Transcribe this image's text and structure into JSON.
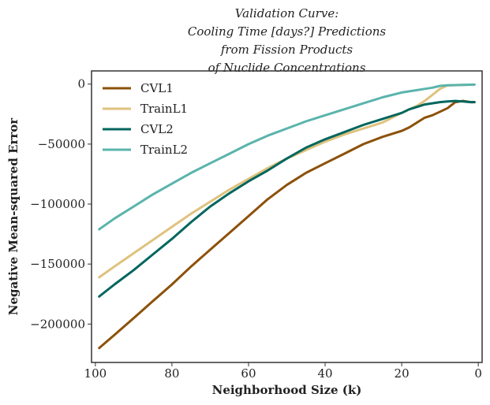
{
  "chart_data": {
    "type": "line",
    "title_lines": [
      "Validation Curve:",
      "Cooling Time [days?] Predictions",
      "from Fission Products",
      "of Nuclide Concentrations"
    ],
    "xlabel": "Neighborhood Size (k)",
    "ylabel": "Negative Mean-squared Error",
    "xlim": [
      101,
      -1
    ],
    "ylim": [
      -232000,
      11000
    ],
    "x_inverted": true,
    "xticks": [
      100,
      80,
      60,
      40,
      20,
      0
    ],
    "xtick_labels": [
      "100",
      "80",
      "60",
      "40",
      "20",
      "0"
    ],
    "yticks": [
      0,
      -50000,
      -100000,
      -150000,
      -200000
    ],
    "ytick_labels": [
      "0",
      "−50000",
      "−100000",
      "−150000",
      "−200000"
    ],
    "grid": false,
    "legend_position": "upper-left",
    "series": [
      {
        "name": "CVL1",
        "color": "#8c510a",
        "points": [
          [
            99,
            -220000
          ],
          [
            95,
            -209000
          ],
          [
            90,
            -195000
          ],
          [
            85,
            -181000
          ],
          [
            80,
            -167000
          ],
          [
            75,
            -152000
          ],
          [
            70,
            -138000
          ],
          [
            65,
            -124000
          ],
          [
            60,
            -110000
          ],
          [
            55,
            -96000
          ],
          [
            50,
            -84000
          ],
          [
            45,
            -74000
          ],
          [
            40,
            -66000
          ],
          [
            35,
            -58000
          ],
          [
            30,
            -50000
          ],
          [
            25,
            -44000
          ],
          [
            20,
            -39000
          ],
          [
            18,
            -36000
          ],
          [
            16,
            -32000
          ],
          [
            14,
            -28000
          ],
          [
            12,
            -26000
          ],
          [
            10,
            -23000
          ],
          [
            8,
            -20000
          ],
          [
            6,
            -15000
          ],
          [
            4,
            -14000
          ],
          [
            2,
            -15000
          ],
          [
            1,
            -15000
          ]
        ]
      },
      {
        "name": "TrainL1",
        "color": "#dfc27d",
        "points": [
          [
            99,
            -161000
          ],
          [
            95,
            -152000
          ],
          [
            90,
            -141000
          ],
          [
            85,
            -130000
          ],
          [
            80,
            -119000
          ],
          [
            75,
            -108000
          ],
          [
            70,
            -98000
          ],
          [
            65,
            -88000
          ],
          [
            60,
            -79000
          ],
          [
            55,
            -70000
          ],
          [
            50,
            -62000
          ],
          [
            45,
            -55000
          ],
          [
            40,
            -48000
          ],
          [
            35,
            -42000
          ],
          [
            30,
            -37000
          ],
          [
            25,
            -32000
          ],
          [
            20,
            -24000
          ],
          [
            18,
            -21000
          ],
          [
            16,
            -18000
          ],
          [
            14,
            -14000
          ],
          [
            12,
            -9000
          ],
          [
            10,
            -4000
          ],
          [
            8,
            -1000
          ],
          [
            6,
            -900
          ],
          [
            4,
            -700
          ],
          [
            2,
            -500
          ],
          [
            1,
            -400
          ]
        ]
      },
      {
        "name": "CVL2",
        "color": "#01665e",
        "points": [
          [
            99,
            -177000
          ],
          [
            95,
            -167000
          ],
          [
            90,
            -155000
          ],
          [
            85,
            -142000
          ],
          [
            80,
            -129000
          ],
          [
            75,
            -115000
          ],
          [
            70,
            -102000
          ],
          [
            65,
            -91000
          ],
          [
            60,
            -81000
          ],
          [
            55,
            -72000
          ],
          [
            50,
            -62000
          ],
          [
            45,
            -53000
          ],
          [
            40,
            -46000
          ],
          [
            35,
            -40000
          ],
          [
            30,
            -34000
          ],
          [
            25,
            -29000
          ],
          [
            20,
            -24000
          ],
          [
            18,
            -21000
          ],
          [
            16,
            -19000
          ],
          [
            14,
            -17000
          ],
          [
            12,
            -16000
          ],
          [
            10,
            -15000
          ],
          [
            8,
            -14500
          ],
          [
            6,
            -14000
          ],
          [
            4,
            -14500
          ],
          [
            2,
            -15000
          ],
          [
            1,
            -15000
          ]
        ]
      },
      {
        "name": "TrainL2",
        "color": "#5ab4ac",
        "points": [
          [
            99,
            -121000
          ],
          [
            95,
            -112000
          ],
          [
            90,
            -102000
          ],
          [
            85,
            -92000
          ],
          [
            80,
            -83000
          ],
          [
            75,
            -74000
          ],
          [
            70,
            -66000
          ],
          [
            65,
            -58000
          ],
          [
            60,
            -50000
          ],
          [
            55,
            -43000
          ],
          [
            50,
            -37000
          ],
          [
            45,
            -31000
          ],
          [
            40,
            -26000
          ],
          [
            35,
            -21000
          ],
          [
            30,
            -16000
          ],
          [
            25,
            -11000
          ],
          [
            20,
            -7000
          ],
          [
            18,
            -6000
          ],
          [
            16,
            -5000
          ],
          [
            14,
            -4000
          ],
          [
            12,
            -3000
          ],
          [
            10,
            -1500
          ],
          [
            8,
            -1000
          ],
          [
            6,
            -800
          ],
          [
            4,
            -600
          ],
          [
            2,
            -500
          ],
          [
            1,
            -400
          ]
        ]
      }
    ]
  }
}
